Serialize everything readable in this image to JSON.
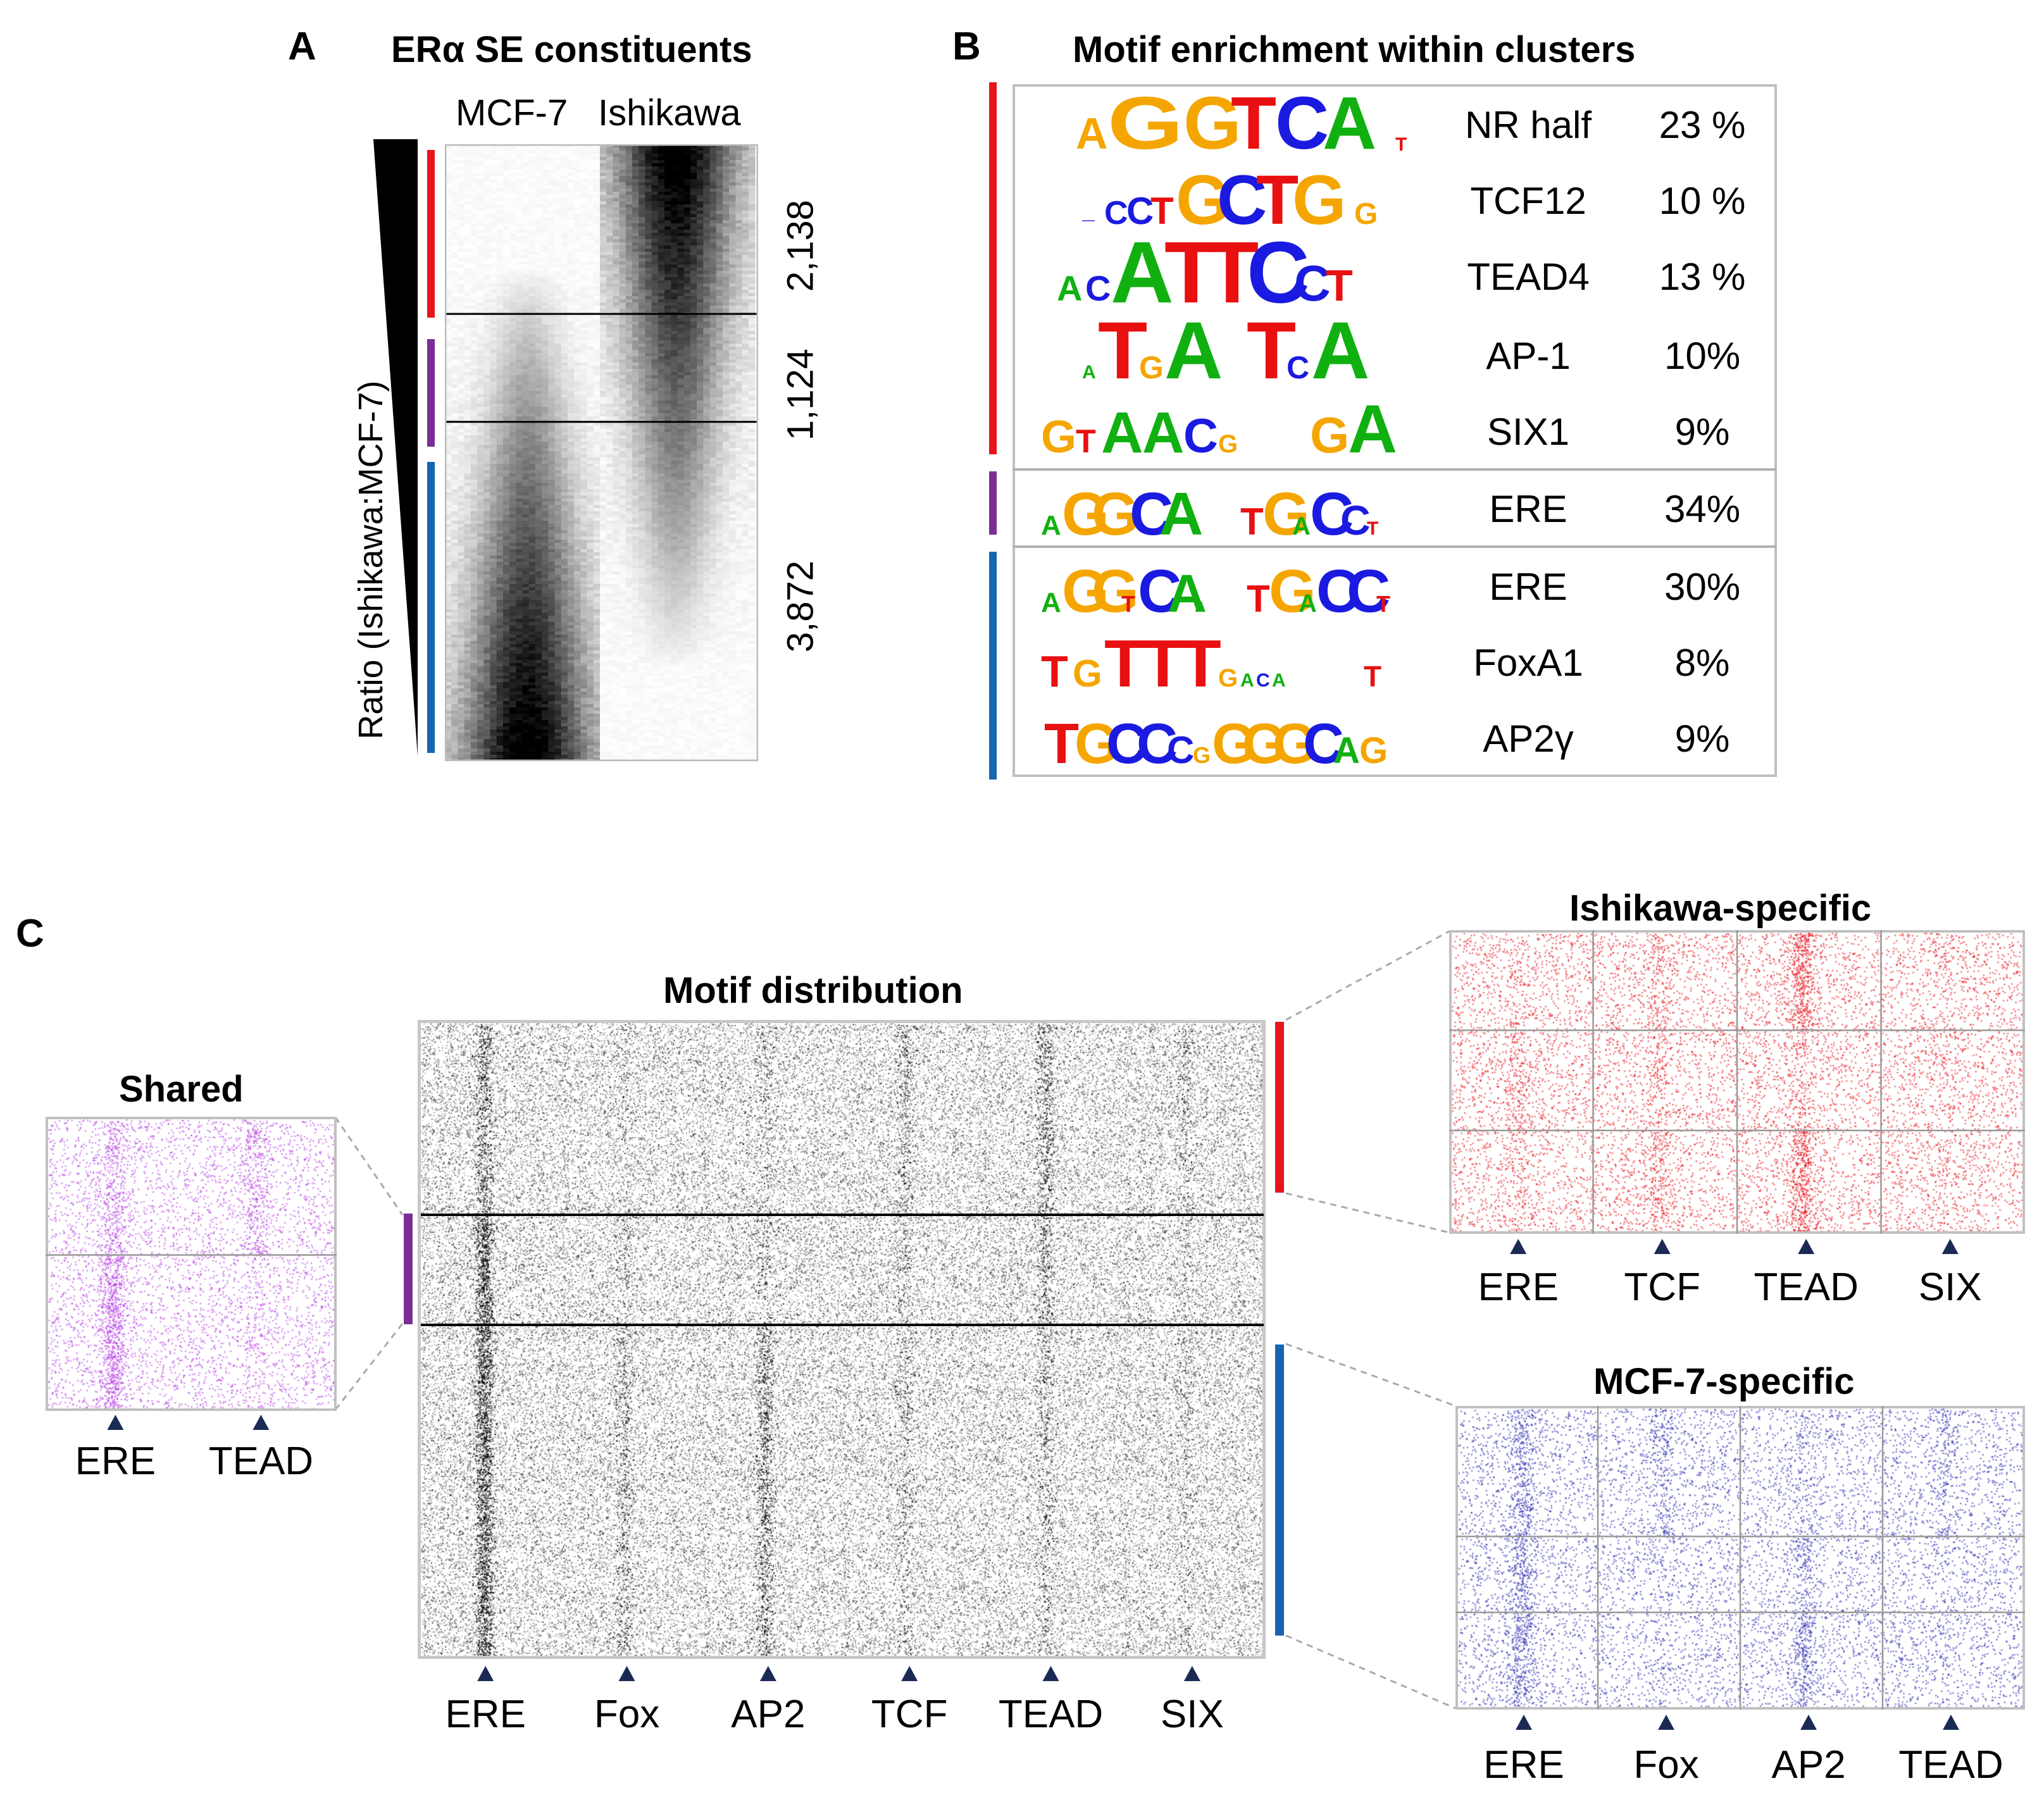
{
  "panelA": {
    "letter": "A",
    "title": "ERα SE constituents",
    "col_labels": [
      "MCF-7",
      "Ishikawa"
    ],
    "ratio_label": "Ratio (Ishikawa:MCF-7)",
    "cluster_counts": [
      "2,138",
      "1,124",
      "3,872"
    ],
    "cluster_colors": [
      "#e8141c",
      "#7b2d96",
      "#1565b0"
    ]
  },
  "panelB": {
    "letter": "B",
    "title": "Motif enrichment within clusters",
    "groups": [
      {
        "color": "#e8141c",
        "motifs": [
          {
            "name": "NR half",
            "pct": "23 %",
            "logo": "AGGTCA"
          },
          {
            "name": "TCF12",
            "pct": "10 %",
            "logo": "CCTGCTG"
          },
          {
            "name": "TEAD4",
            "pct": "13 %",
            "logo": "ACATTCCT"
          },
          {
            "name": "AP-1",
            "pct": "10%",
            "logo": "TGA TCA"
          },
          {
            "name": "SIX1",
            "pct": "9%",
            "logo": "GTAACG GA"
          }
        ]
      },
      {
        "color": "#7b2d96",
        "motifs": [
          {
            "name": "ERE",
            "pct": "34%",
            "logo": "AGG CA TGACC"
          }
        ]
      },
      {
        "color": "#1565b0",
        "motifs": [
          {
            "name": "ERE",
            "pct": "30%",
            "logo": "AGGTCA TGACCT"
          },
          {
            "name": "FoxA1",
            "pct": "8%",
            "logo": "TGTTTG T"
          },
          {
            "name": "AP2γ",
            "pct": "9%",
            "logo": "TGCCCGGGCAG"
          }
        ]
      }
    ]
  },
  "panelC": {
    "letter": "C",
    "main_title": "Motif distribution",
    "main_labels": [
      "ERE",
      "Fox",
      "AP2",
      "TCF",
      "TEAD",
      "SIX"
    ],
    "shared": {
      "title": "Shared",
      "labels": [
        "ERE",
        "TEAD"
      ],
      "color": "#b030e0"
    },
    "ishikawa": {
      "title": "Ishikawa-specific",
      "labels": [
        "ERE",
        "TCF",
        "TEAD",
        "SIX"
      ],
      "color": "#e8141c"
    },
    "mcf7": {
      "title": "MCF-7-specific",
      "labels": [
        "ERE",
        "Fox",
        "AP2",
        "TEAD"
      ],
      "color": "#2a2ab0"
    }
  }
}
